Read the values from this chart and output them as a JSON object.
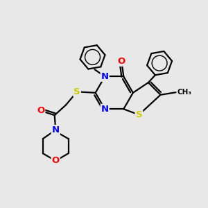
{
  "bg_color": "#e8e8e8",
  "atom_colors": {
    "C": "#000000",
    "N": "#0000ff",
    "O": "#ff0000",
    "S": "#cccc00"
  },
  "bond_color": "#000000",
  "bond_width": 1.6,
  "figsize": [
    3.0,
    3.0
  ],
  "dpi": 100,
  "xlim": [
    0,
    10
  ],
  "ylim": [
    0,
    10
  ]
}
